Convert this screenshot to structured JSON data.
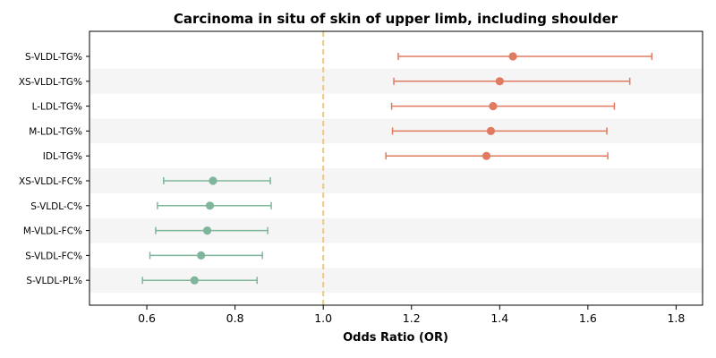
{
  "chart_data": {
    "type": "forest",
    "title": "Carcinoma in situ of skin of upper limb, including shoulder",
    "xlabel": "Odds Ratio (OR)",
    "xlim": [
      0.47,
      1.86
    ],
    "xticks": [
      0.6,
      0.8,
      1.0,
      1.2,
      1.4,
      1.6,
      1.8
    ],
    "xtick_labels": [
      "0.6",
      "0.8",
      "1.0",
      "1.2",
      "1.4",
      "1.6",
      "1.8"
    ],
    "reference_line": 1.0,
    "reference_color": "#f0c87a",
    "grid": false,
    "colors": {
      "risk": "#e07b62",
      "protective": "#7fb59b",
      "band": "#f5f5f5"
    },
    "rows": [
      {
        "label": "S-VLDL-TG%",
        "or": 1.43,
        "lower": 1.17,
        "upper": 1.745,
        "group": "risk"
      },
      {
        "label": "XS-VLDL-TG%",
        "or": 1.4,
        "lower": 1.16,
        "upper": 1.695,
        "group": "risk"
      },
      {
        "label": "L-LDL-TG%",
        "or": 1.385,
        "lower": 1.155,
        "upper": 1.66,
        "group": "risk"
      },
      {
        "label": "M-LDL-TG%",
        "or": 1.38,
        "lower": 1.157,
        "upper": 1.643,
        "group": "risk"
      },
      {
        "label": "IDL-TG%",
        "or": 1.37,
        "lower": 1.142,
        "upper": 1.645,
        "group": "risk"
      },
      {
        "label": "XS-VLDL-FC%",
        "or": 0.75,
        "lower": 0.638,
        "upper": 0.88,
        "group": "protective"
      },
      {
        "label": "S-VLDL-C%",
        "or": 0.743,
        "lower": 0.624,
        "upper": 0.882,
        "group": "protective"
      },
      {
        "label": "M-VLDL-FC%",
        "or": 0.737,
        "lower": 0.62,
        "upper": 0.874,
        "group": "protective"
      },
      {
        "label": "S-VLDL-FC%",
        "or": 0.723,
        "lower": 0.607,
        "upper": 0.862,
        "group": "protective"
      },
      {
        "label": "S-VLDL-PL%",
        "or": 0.708,
        "lower": 0.59,
        "upper": 0.85,
        "group": "protective"
      }
    ]
  }
}
